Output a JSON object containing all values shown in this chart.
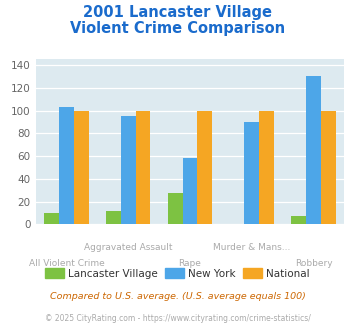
{
  "title_line1": "2001 Lancaster Village",
  "title_line2": "Violent Crime Comparison",
  "categories": [
    "All Violent Crime",
    "Aggravated Assault",
    "Rape",
    "Murder & Mans...",
    "Robbery"
  ],
  "cat_top": [
    "Aggravated Assault",
    "Murder & Mans..."
  ],
  "cat_bottom": [
    "All Violent Crime",
    "Rape",
    "Robbery"
  ],
  "series": {
    "Lancaster Village": [
      10,
      12,
      28,
      0,
      7
    ],
    "New York": [
      103,
      95,
      58,
      90,
      130
    ],
    "National": [
      100,
      100,
      100,
      100,
      100
    ]
  },
  "colors": {
    "Lancaster Village": "#7dc242",
    "New York": "#4da6e8",
    "National": "#f5a623"
  },
  "ylim": [
    0,
    145
  ],
  "yticks": [
    0,
    20,
    40,
    60,
    80,
    100,
    120,
    140
  ],
  "background_color": "#ddeaf0",
  "title_color": "#1a6bcc",
  "xlabel_color_top": "#aaaaaa",
  "xlabel_color_bottom": "#aaaaaa",
  "footnote1": "Compared to U.S. average. (U.S. average equals 100)",
  "footnote2": "© 2025 CityRating.com - https://www.cityrating.com/crime-statistics/",
  "footnote1_color": "#cc6600",
  "footnote2_color": "#aaaaaa",
  "bar_width": 0.24
}
